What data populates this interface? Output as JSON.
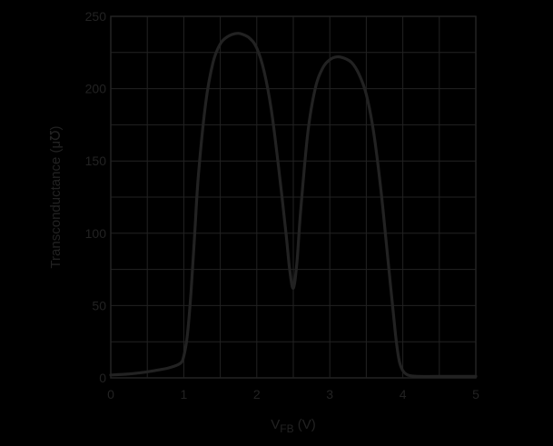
{
  "chart_data": {
    "type": "line",
    "title": "",
    "xlabel": "V",
    "xlabel_sub": "FB",
    "xlabel_unit": " (V)",
    "ylabel": "Transconductance (μ℧)",
    "xlim": [
      0,
      5
    ],
    "ylim": [
      0,
      250
    ],
    "xticks": [
      "0",
      "1",
      "2",
      "3",
      "4",
      "5"
    ],
    "yticks": [
      "0",
      "50",
      "100",
      "150",
      "200",
      "250"
    ],
    "x_minor_step": 0.5,
    "y_minor_step": 25,
    "grid": true,
    "colors": {
      "background": "#000000",
      "line": "#222222",
      "grid": "#222222",
      "text": "#222222"
    },
    "series": [
      {
        "x": [
          0.0,
          0.2,
          0.4,
          0.6,
          0.8,
          0.95,
          1.0,
          1.05,
          1.1,
          1.15,
          1.2,
          1.3,
          1.4,
          1.5,
          1.6,
          1.7,
          1.78,
          1.9,
          2.0,
          2.1,
          2.2,
          2.3,
          2.4,
          2.45,
          2.5,
          2.55,
          2.6,
          2.7,
          2.8,
          2.9,
          3.0,
          3.1,
          3.2,
          3.3,
          3.4,
          3.5,
          3.6,
          3.7,
          3.8,
          3.9,
          3.95,
          4.0,
          4.05,
          4.1,
          4.2,
          4.5,
          5.0
        ],
        "y": [
          2,
          2.5,
          3.5,
          5,
          7,
          10,
          15,
          30,
          60,
          100,
          140,
          190,
          218,
          231,
          236,
          238,
          238,
          235,
          228,
          212,
          185,
          145,
          100,
          75,
          62,
          80,
          115,
          170,
          200,
          214,
          220,
          222,
          221,
          218,
          210,
          196,
          170,
          130,
          80,
          30,
          12,
          5,
          2.5,
          1.5,
          1,
          1,
          1
        ]
      }
    ]
  }
}
